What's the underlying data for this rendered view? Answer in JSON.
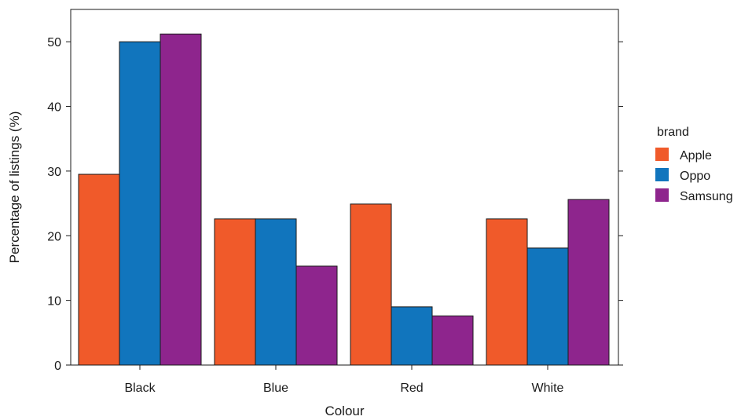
{
  "chart_data": {
    "type": "bar",
    "categories": [
      "Black",
      "Blue",
      "Red",
      "White"
    ],
    "series": [
      {
        "name": "Apple",
        "color": "#F05A2A",
        "values": [
          29.5,
          22.6,
          24.9,
          22.6
        ]
      },
      {
        "name": "Oppo",
        "color": "#1175BD",
        "values": [
          50.0,
          22.6,
          9.0,
          18.1
        ]
      },
      {
        "name": "Samsung",
        "color": "#8E258D",
        "values": [
          51.2,
          15.3,
          7.6,
          25.6
        ]
      }
    ],
    "xlabel": "Colour",
    "ylabel": "Percentage of listings (%)",
    "ylim": [
      0,
      55
    ],
    "yticks": [
      0,
      10,
      20,
      30,
      40,
      50
    ],
    "legend": {
      "title": "brand",
      "position": "right"
    },
    "grid": false
  }
}
